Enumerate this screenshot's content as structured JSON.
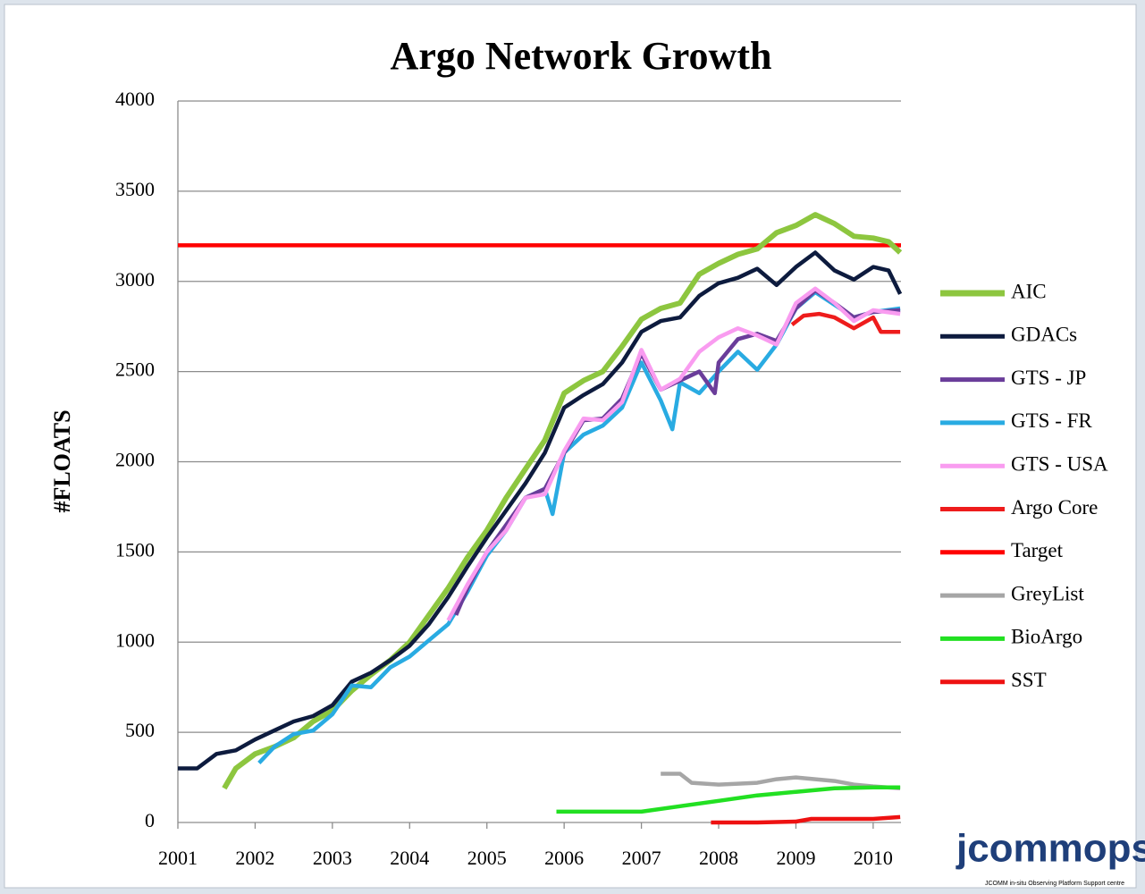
{
  "chart_data": {
    "type": "line",
    "title": "Argo Network Growth",
    "y_label": "#FLOATS",
    "xlim": [
      2001,
      2010.36
    ],
    "xticks": [
      2001,
      2002,
      2003,
      2004,
      2005,
      2006,
      2007,
      2008,
      2009,
      2010
    ],
    "ylim": [
      0,
      4000
    ],
    "yticks": [
      0,
      500,
      1000,
      1500,
      2000,
      2500,
      3000,
      3500,
      4000
    ],
    "grid": true,
    "legend": "right",
    "series": [
      {
        "name": "AIC",
        "color": "#8dc63f",
        "x": [
          2001.6,
          2001.75,
          2002,
          2002.25,
          2002.5,
          2002.75,
          2003,
          2003.25,
          2003.5,
          2003.75,
          2004,
          2004.25,
          2004.5,
          2004.75,
          2005,
          2005.25,
          2005.5,
          2005.75,
          2006,
          2006.25,
          2006.5,
          2006.75,
          2007,
          2007.25,
          2007.5,
          2007.75,
          2008,
          2008.25,
          2008.5,
          2008.75,
          2009,
          2009.25,
          2009.5,
          2009.75,
          2010,
          2010.2,
          2010.35
        ],
        "values": [
          190,
          300,
          380,
          420,
          470,
          560,
          620,
          730,
          820,
          900,
          1000,
          1150,
          1300,
          1470,
          1620,
          1800,
          1960,
          2120,
          2380,
          2450,
          2500,
          2640,
          2790,
          2850,
          2880,
          3040,
          3100,
          3150,
          3180,
          3270,
          3310,
          3370,
          3320,
          3250,
          3240,
          3220,
          3160
        ]
      },
      {
        "name": "GDACs",
        "color": "#0d1b3e",
        "x": [
          2001,
          2001.25,
          2001.5,
          2001.75,
          2002,
          2002.25,
          2002.5,
          2002.75,
          2003,
          2003.25,
          2003.5,
          2003.75,
          2004,
          2004.25,
          2004.5,
          2004.75,
          2005,
          2005.25,
          2005.5,
          2005.75,
          2006,
          2006.25,
          2006.5,
          2006.75,
          2007,
          2007.25,
          2007.5,
          2007.75,
          2008,
          2008.25,
          2008.5,
          2008.75,
          2009,
          2009.25,
          2009.5,
          2009.75,
          2010,
          2010.2,
          2010.35
        ],
        "values": [
          300,
          300,
          380,
          400,
          460,
          510,
          560,
          590,
          650,
          780,
          830,
          900,
          980,
          1100,
          1250,
          1420,
          1580,
          1730,
          1880,
          2050,
          2300,
          2370,
          2430,
          2550,
          2720,
          2780,
          2800,
          2920,
          2990,
          3020,
          3070,
          2980,
          3080,
          3160,
          3060,
          3010,
          3080,
          3060,
          2930
        ]
      },
      {
        "name": "GTS - JP",
        "color": "#6a3d9a",
        "x": [
          2004.6,
          2004.75,
          2005,
          2005.25,
          2005.5,
          2005.75,
          2006,
          2006.25,
          2006.5,
          2006.75,
          2007,
          2007.25,
          2007.5,
          2007.75,
          2007.95,
          2008,
          2008.25,
          2008.5,
          2008.75,
          2009,
          2009.25,
          2009.5,
          2009.75,
          2010,
          2010.35
        ],
        "values": [
          1150,
          1300,
          1500,
          1650,
          1800,
          1850,
          2050,
          2230,
          2240,
          2350,
          2600,
          2400,
          2450,
          2500,
          2380,
          2550,
          2680,
          2710,
          2670,
          2850,
          2950,
          2880,
          2800,
          2830,
          2840
        ]
      },
      {
        "name": "GTS - FR",
        "color": "#29abe2",
        "x": [
          2002.05,
          2002.25,
          2002.5,
          2002.75,
          2003,
          2003.25,
          2003.5,
          2003.75,
          2004,
          2004.25,
          2004.5,
          2004.75,
          2005,
          2005.25,
          2005.5,
          2005.75,
          2005.85,
          2006,
          2006.25,
          2006.5,
          2006.75,
          2007,
          2007.25,
          2007.4,
          2007.5,
          2007.75,
          2008,
          2008.25,
          2008.5,
          2008.75,
          2009,
          2009.25,
          2009.5,
          2009.75,
          2010,
          2010.35
        ],
        "values": [
          330,
          420,
          490,
          510,
          600,
          760,
          750,
          860,
          920,
          1010,
          1100,
          1280,
          1480,
          1620,
          1800,
          1850,
          1710,
          2050,
          2150,
          2200,
          2300,
          2550,
          2340,
          2180,
          2440,
          2380,
          2500,
          2610,
          2510,
          2650,
          2850,
          2940,
          2870,
          2800,
          2830,
          2850
        ]
      },
      {
        "name": "GTS - USA",
        "color": "#f99cf0",
        "x": [
          2004.5,
          2004.75,
          2005,
          2005.25,
          2005.5,
          2005.75,
          2006,
          2006.25,
          2006.5,
          2006.75,
          2007,
          2007.25,
          2007.5,
          2007.75,
          2008,
          2008.25,
          2008.5,
          2008.75,
          2009,
          2009.25,
          2009.5,
          2009.75,
          2010,
          2010.35
        ],
        "values": [
          1120,
          1320,
          1500,
          1620,
          1800,
          1820,
          2060,
          2240,
          2230,
          2330,
          2620,
          2400,
          2460,
          2610,
          2690,
          2740,
          2700,
          2650,
          2880,
          2960,
          2880,
          2780,
          2840,
          2820
        ]
      },
      {
        "name": "Argo Core",
        "color": "#ee1c1c",
        "x": [
          2008.95,
          2009.1,
          2009.3,
          2009.5,
          2009.75,
          2010,
          2010.1,
          2010.35
        ],
        "values": [
          2760,
          2810,
          2820,
          2800,
          2740,
          2800,
          2720,
          2720
        ]
      },
      {
        "name": "Target",
        "color": "#ff0000",
        "x": [
          2001,
          2010.36
        ],
        "values": [
          3200,
          3200
        ]
      },
      {
        "name": "GreyList",
        "color": "#a6a6a6",
        "x": [
          2007.25,
          2007.5,
          2007.65,
          2008,
          2008.5,
          2008.75,
          2009,
          2009.5,
          2009.75,
          2010,
          2010.35
        ],
        "values": [
          270,
          270,
          220,
          210,
          220,
          240,
          250,
          230,
          210,
          200,
          190
        ]
      },
      {
        "name": "BioArgo",
        "color": "#22e022",
        "x": [
          2005.9,
          2006.5,
          2007,
          2007.5,
          2008,
          2008.5,
          2009,
          2009.5,
          2010,
          2010.35
        ],
        "values": [
          60,
          60,
          60,
          90,
          120,
          150,
          170,
          190,
          195,
          195
        ]
      },
      {
        "name": "SST",
        "color": "#ee1111",
        "x": [
          2007.9,
          2008.5,
          2009,
          2009.2,
          2010,
          2010.35
        ],
        "values": [
          0,
          0,
          5,
          20,
          20,
          30
        ]
      }
    ]
  },
  "logo": {
    "name": "jcommops",
    "tagline": "JCOMM in-situ Observing Platform Support centre"
  }
}
